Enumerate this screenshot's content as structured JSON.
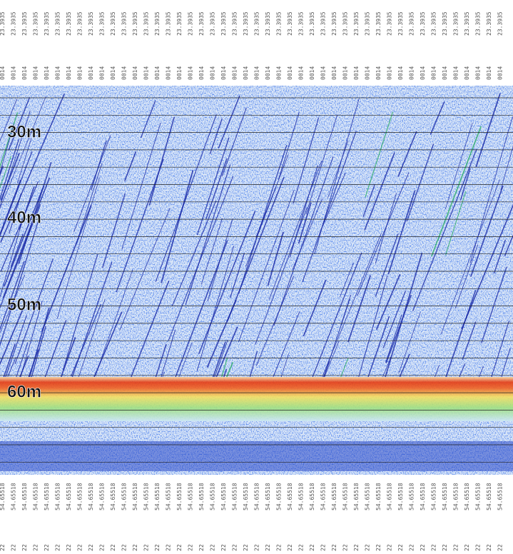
{
  "depth_labels": [
    "30m",
    "40m",
    "50m",
    "60m"
  ],
  "top_labels": {
    "row1": [
      "23.3935",
      "23.3935",
      "23.3935",
      "23.3935",
      "23.3935",
      "23.3935",
      "23.3935",
      "23.3935",
      "23.3935",
      "23.3935",
      "23.3935",
      "23.3935",
      "23.3935",
      "23.3935",
      "23.3935",
      "23.3935",
      "23.3935",
      "23.3935",
      "23.3935",
      "23.3935",
      "23.3935",
      "23.3935",
      "23.3935",
      "23.3935",
      "23.3935",
      "23.3935",
      "23.3935",
      "23.3935",
      "23.3935",
      "23.3935",
      "23.3935",
      "23.3935",
      "23.3935",
      "23.3935",
      "23.3935",
      "23.3935",
      "23.3935",
      "23.3935",
      "23.3935",
      "23.3935",
      "23.3935",
      "23.3935",
      "23.3935",
      "23.3935",
      "23.3935",
      "23.3935"
    ],
    "row2": [
      "0014",
      "0014",
      "0014",
      "0014",
      "0014",
      "0014",
      "0014",
      "0014",
      "0014",
      "0014",
      "0014",
      "0014",
      "0014",
      "0014",
      "0014",
      "0014",
      "0014",
      "0014",
      "0014",
      "0014",
      "0014",
      "0014",
      "0014",
      "0014",
      "0014",
      "0014",
      "0014",
      "0014",
      "0014",
      "0014",
      "0014",
      "0014",
      "0014",
      "0014",
      "0014",
      "0014",
      "0014",
      "0014",
      "0014",
      "0014",
      "0014",
      "0014",
      "0014",
      "0014",
      "0014",
      "0014"
    ]
  },
  "bottom_labels": {
    "row1": [
      "54.65518",
      "54.65518",
      "54.65518",
      "54.65518",
      "54.65518",
      "54.65518",
      "54.65518",
      "54.65518",
      "54.65518",
      "54.65518",
      "54.65518",
      "54.65518",
      "54.65518",
      "54.65518",
      "54.65518",
      "54.65518",
      "54.65518",
      "54.65518",
      "54.65518",
      "54.65518",
      "54.65518",
      "54.65518",
      "54.65518",
      "54.65518",
      "54.65518",
      "54.65518",
      "54.65518",
      "54.65518",
      "54.65518",
      "54.65518",
      "54.65518",
      "54.65518",
      "54.65518",
      "54.65518",
      "54.65518",
      "54.65518",
      "54.65518",
      "54.65518",
      "54.65518",
      "54.65518",
      "54.65518",
      "54.65518",
      "54.65518",
      "54.65518",
      "54.65518",
      "54.65518"
    ],
    "row2": [
      "22",
      "22",
      "22",
      "22",
      "22",
      "22",
      "22",
      "22",
      "22",
      "22",
      "22",
      "22",
      "22",
      "22",
      "22",
      "22",
      "22",
      "22",
      "22",
      "22",
      "22",
      "22",
      "22",
      "22",
      "22",
      "22",
      "22",
      "22",
      "22",
      "22",
      "22",
      "22",
      "22",
      "22",
      "22",
      "22",
      "22",
      "22",
      "22",
      "22",
      "22",
      "22",
      "22",
      "22",
      "22",
      "22"
    ]
  }
}
